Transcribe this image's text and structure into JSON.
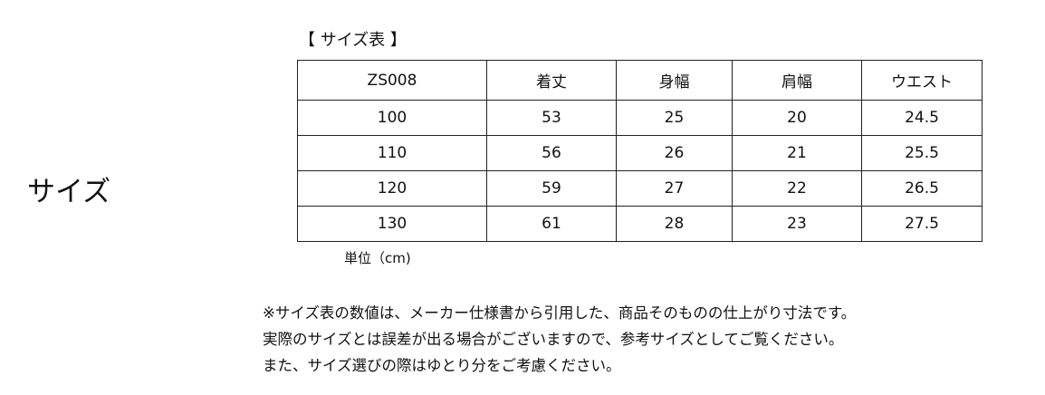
{
  "side_label": "サイズ",
  "table_title": "【 サイズ表 】",
  "size_table": {
    "headers": [
      "ZS008",
      "着丈",
      "身幅",
      "肩幅",
      "ウエスト"
    ],
    "rows": [
      [
        "100",
        "53",
        "25",
        "20",
        "24.5"
      ],
      [
        "110",
        "56",
        "26",
        "21",
        "25.5"
      ],
      [
        "120",
        "59",
        "27",
        "22",
        "26.5"
      ],
      [
        "130",
        "61",
        "28",
        "23",
        "27.5"
      ]
    ]
  },
  "unit": "単位（cm)",
  "notes": [
    "※サイズ表の数値は、メーカー仕様書から引用した、商品そのものの仕上がり寸法です。",
    "実際のサイズとは誤差が出る場合がございますので、参考サイズとしてご覧ください。",
    "また、サイズ選びの際はゆとり分をご考慮ください。"
  ]
}
